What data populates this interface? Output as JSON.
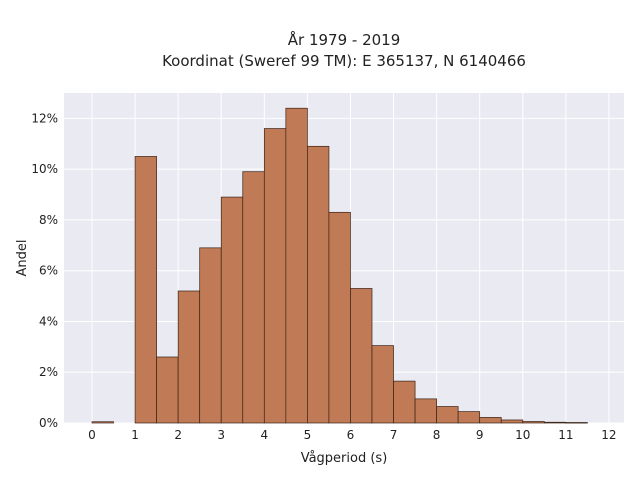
{
  "chart_data": {
    "type": "bar",
    "title": [
      "År 1979 - 2019",
      "Koordinat (Sweref 99 TM): E 365137, N 6140466"
    ],
    "xlabel": "Vågperiod (s)",
    "ylabel": "Andel",
    "xlim": [
      -0.65,
      12.35
    ],
    "ylim": [
      0,
      13
    ],
    "xticks": [
      "0",
      "1",
      "2",
      "3",
      "4",
      "5",
      "6",
      "7",
      "8",
      "9",
      "10",
      "11",
      "12"
    ],
    "yticks": [
      "0%",
      "2%",
      "4%",
      "6%",
      "8%",
      "10%",
      "12%"
    ],
    "ytick_values": [
      0,
      2,
      4,
      6,
      8,
      10,
      12
    ],
    "grid": true,
    "bin_width": 0.5,
    "bar_color": "#c07a55",
    "edge_color": "#3a2418",
    "background_color": "#eaeaf2",
    "bins": [
      {
        "x": 0.0,
        "value": 0.05
      },
      {
        "x": 1.0,
        "value": 10.5
      },
      {
        "x": 1.5,
        "value": 2.6
      },
      {
        "x": 2.0,
        "value": 5.2
      },
      {
        "x": 2.5,
        "value": 6.9
      },
      {
        "x": 3.0,
        "value": 8.9
      },
      {
        "x": 3.5,
        "value": 9.9
      },
      {
        "x": 4.0,
        "value": 11.6
      },
      {
        "x": 4.5,
        "value": 12.4
      },
      {
        "x": 5.0,
        "value": 10.9
      },
      {
        "x": 5.5,
        "value": 8.3
      },
      {
        "x": 6.0,
        "value": 5.3
      },
      {
        "x": 6.5,
        "value": 3.05
      },
      {
        "x": 7.0,
        "value": 1.65
      },
      {
        "x": 7.5,
        "value": 0.95
      },
      {
        "x": 8.0,
        "value": 0.65
      },
      {
        "x": 8.5,
        "value": 0.45
      },
      {
        "x": 9.0,
        "value": 0.22
      },
      {
        "x": 9.5,
        "value": 0.12
      },
      {
        "x": 10.0,
        "value": 0.06
      },
      {
        "x": 10.5,
        "value": 0.03
      },
      {
        "x": 11.0,
        "value": 0.02
      }
    ]
  }
}
